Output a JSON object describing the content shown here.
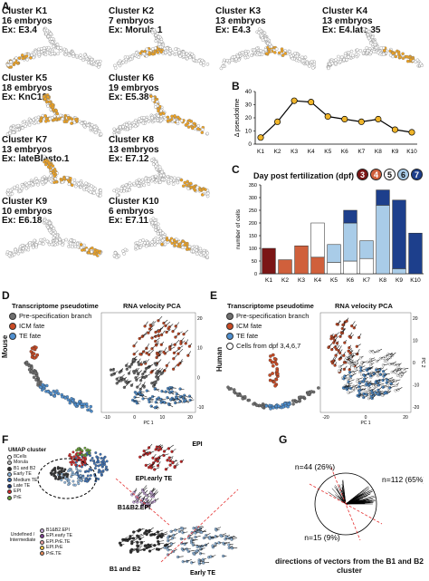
{
  "panels": {
    "A": "A",
    "B": "B",
    "C": "C",
    "D": "D",
    "E": "E",
    "F": "F",
    "G": "G"
  },
  "clusters": [
    {
      "name": "Cluster K1",
      "embryos": "16 embryos",
      "example": "Ex: E3.4"
    },
    {
      "name": "Cluster K2",
      "embryos": "7 embryos",
      "example": "Ex: Morula.1"
    },
    {
      "name": "Cluster K3",
      "embryos": "13 embryos",
      "example": "Ex: E4.3"
    },
    {
      "name": "Cluster K4",
      "embryos": "13 embryos",
      "example": "Ex: E4.late.35"
    },
    {
      "name": "Cluster K5",
      "embryos": "18 embryos",
      "example": "Ex: KnC12"
    },
    {
      "name": "Cluster K6",
      "embryos": "19 embryos",
      "example": "Ex: E5.38"
    },
    {
      "name": "Cluster K7",
      "embryos": "13 embryos",
      "example": "Ex: lateBlasto.1"
    },
    {
      "name": "Cluster K8",
      "embryos": "13 embryos",
      "example": "Ex: E7.12"
    },
    {
      "name": "Cluster K9",
      "embryos": "10 embryos",
      "example": "Ex: E6.18"
    },
    {
      "name": "Cluster K10",
      "embryos": "6 embryos",
      "example": "Ex: E7.11"
    }
  ],
  "colors": {
    "highlight": "#f0a21e",
    "dpf3": "#7b1616",
    "dpf4": "#d0603c",
    "dpf5": "#ffffff",
    "dpf6": "#a9cce8",
    "dpf7": "#1d3f8c",
    "pre": "#6f6f6f",
    "icm": "#c94a24",
    "te": "#4f8fcf"
  },
  "chart_data": [
    {
      "type": "line",
      "ylabel": "Δ pseudotime",
      "categories": [
        "K1",
        "K2",
        "K3",
        "K4",
        "K5",
        "K6",
        "K7",
        "K8",
        "K9",
        "K10"
      ],
      "values": [
        5,
        17,
        33,
        32,
        21,
        19,
        17,
        19,
        11,
        9
      ],
      "ylim": [
        0,
        40
      ],
      "yticks": [
        "0",
        "10",
        "20",
        "30",
        "40"
      ],
      "grid": false
    },
    {
      "type": "bar",
      "title": "Day post fertilization (dpf)",
      "dpf_badges": [
        "3",
        "4",
        "5",
        "6",
        "7"
      ],
      "ylabel": "number of cells",
      "categories": [
        "K1",
        "K2",
        "K3",
        "K4",
        "K5",
        "K6",
        "K7",
        "K8",
        "K9",
        "K10"
      ],
      "ylim": [
        0,
        350
      ],
      "yticks": [
        "0",
        "50",
        "100",
        "150",
        "200",
        "250",
        "300",
        "350"
      ],
      "series": [
        {
          "name": "3",
          "values": [
            100,
            0,
            0,
            0,
            0,
            0,
            0,
            0,
            0,
            0
          ]
        },
        {
          "name": "4",
          "values": [
            0,
            55,
            110,
            65,
            0,
            0,
            0,
            0,
            0,
            0
          ]
        },
        {
          "name": "5",
          "values": [
            0,
            0,
            0,
            135,
            45,
            50,
            60,
            0,
            0,
            0
          ]
        },
        {
          "name": "6",
          "values": [
            0,
            0,
            0,
            0,
            70,
            150,
            70,
            270,
            20,
            0
          ]
        },
        {
          "name": "7",
          "values": [
            0,
            0,
            0,
            0,
            0,
            50,
            0,
            60,
            270,
            160
          ]
        }
      ]
    }
  ],
  "panelD": {
    "title_left": "Transcriptome pseudotime",
    "title_right": "RNA velocity PCA",
    "species": "Mouse",
    "legend": [
      "Pre-specification branch",
      "ICM fate",
      "TE fate"
    ],
    "xaxis": "PC 1",
    "xticks": [
      "-10",
      "0",
      "10",
      "20"
    ],
    "yticks": [
      "20",
      "10",
      "0",
      "-10"
    ]
  },
  "panelE": {
    "title_left": "Transcriptome pseudotime",
    "title_right": "RNA velocity PCA",
    "species": "Human",
    "legend": [
      "Pre-specification branch",
      "ICM fate",
      "TE fate",
      "Cells from dpf 3,4,6,7"
    ],
    "xaxis": "PC 1",
    "yaxis": "PC 2",
    "xticks": [
      "-20",
      "0",
      "20"
    ],
    "yticks": [
      "20",
      "10",
      "0",
      "-10",
      "-20"
    ]
  },
  "panelF": {
    "legend_title": "UMAP cluster",
    "legend": [
      "8Cells",
      "Morula",
      "B1 and B2",
      "Early TE",
      "Medium TE",
      "Late TE",
      "EPI",
      "PrE"
    ],
    "undefined_label": "Undefined / Intermediate",
    "intermediate": [
      "B1&B2.EPI",
      "EPI.early TE",
      "EPI.PrE.TE",
      "EPI.PrE",
      "PrE.TE"
    ],
    "annotations": [
      "EPI",
      "EPI.early TE",
      "B1&B2.EPI",
      "B1 and B2",
      "Early TE"
    ]
  },
  "panelG": {
    "labels": [
      "n=44 (26%)",
      "n=112 (65%)",
      "n=15 (9%)"
    ],
    "caption": "directions of vectors from the B1 and B2 cluster"
  }
}
